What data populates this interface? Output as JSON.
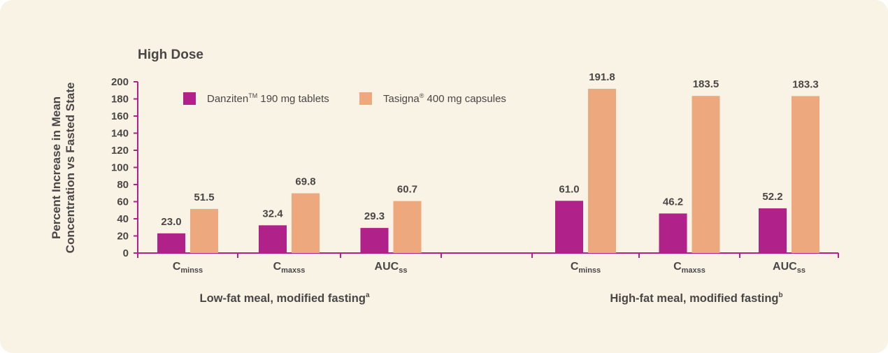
{
  "chart_data": {
    "type": "bar",
    "title": "High Dose",
    "ylabel_lines": [
      "Percent Increase in Mean",
      "Concentration vs Fasted State"
    ],
    "xlabel": "",
    "ylim": [
      0,
      200
    ],
    "yticks": [
      0,
      20,
      40,
      60,
      80,
      100,
      120,
      140,
      160,
      180,
      200
    ],
    "grid": false,
    "legend_position": "top-left",
    "colors": {
      "danziten": "#b0228a",
      "tasigna": "#eea87e",
      "axis": "#b0228a",
      "text": "#4a4646",
      "background": "#f9f3e5"
    },
    "legend": [
      {
        "key": "danziten",
        "name": "Danziten",
        "sup": "TM",
        "rest": " 190 mg tablets",
        "color": "#b0228a"
      },
      {
        "key": "tasigna",
        "name": "Tasigna",
        "sup": "®",
        "rest": " 400 mg capsules",
        "color": "#eea87e"
      }
    ],
    "groups": [
      {
        "label": "Low-fat meal, modified fasting",
        "label_sup": "a",
        "categories": [
          {
            "main": "C",
            "sub": "minss",
            "danziten": 23.0,
            "tasigna": 51.5
          },
          {
            "main": "C",
            "sub": "maxss",
            "danziten": 32.4,
            "tasigna": 69.8
          },
          {
            "main": "AUC",
            "sub": "ss",
            "danziten": 29.3,
            "tasigna": 60.7
          }
        ]
      },
      {
        "label": "High-fat meal, modified fasting",
        "label_sup": "b",
        "categories": [
          {
            "main": "C",
            "sub": "minss",
            "danziten": 61.0,
            "tasigna": 191.8
          },
          {
            "main": "C",
            "sub": "maxss",
            "danziten": 46.2,
            "tasigna": 183.5
          },
          {
            "main": "AUC",
            "sub": "ss",
            "danziten": 52.2,
            "tasigna": 183.3
          }
        ]
      }
    ],
    "series": [
      {
        "name": "Danziten 190 mg tablets",
        "values": [
          23.0,
          32.4,
          29.3,
          61.0,
          46.2,
          52.2
        ]
      },
      {
        "name": "Tasigna 400 mg capsules",
        "values": [
          51.5,
          69.8,
          60.7,
          191.8,
          183.5,
          183.3
        ]
      }
    ],
    "categories": [
      "Cminss (low-fat)",
      "Cmaxss (low-fat)",
      "AUCss (low-fat)",
      "Cminss (high-fat)",
      "Cmaxss (high-fat)",
      "AUCss (high-fat)"
    ]
  }
}
